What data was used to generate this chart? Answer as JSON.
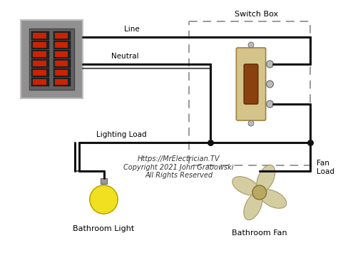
{
  "bg_color": "#ffffff",
  "wire_color": "#111111",
  "wire_lw": 2.2,
  "panel_color": "#909090",
  "panel_inner_color": "#606060",
  "panel_border_color": "#c0c0c0",
  "breaker_color": "#222222",
  "breaker_inner_color": "#cc2200",
  "switch_box_dash_color": "#999999",
  "switch_body_color": "#d4c48a",
  "switch_toggle_color": "#8B4010",
  "switch_border_color": "#a08040",
  "screw_color": "#bbbbbb",
  "bulb_color": "#f0e020",
  "bulb_edge_color": "#c0a800",
  "bulb_base_color": "#999999",
  "fan_blade_color": "#d0c898",
  "fan_hub_color": "#b8a860",
  "label_color": "#000000",
  "copyright_color": "#333333",
  "title_text": "Switch Box",
  "line_label": "Line",
  "neutral_label": "Neutral",
  "lighting_label": "Lighting Load",
  "fan_label": "Fan\nLoad",
  "bathroom_light_label": "Bathroom Light",
  "bathroom_fan_label": "Bathroom Fan",
  "copyright_text": "Https://MrElectrician.TV\nCopyright 2021 John Grabowski\nAll Rights Reserved",
  "font_size": 7.5
}
